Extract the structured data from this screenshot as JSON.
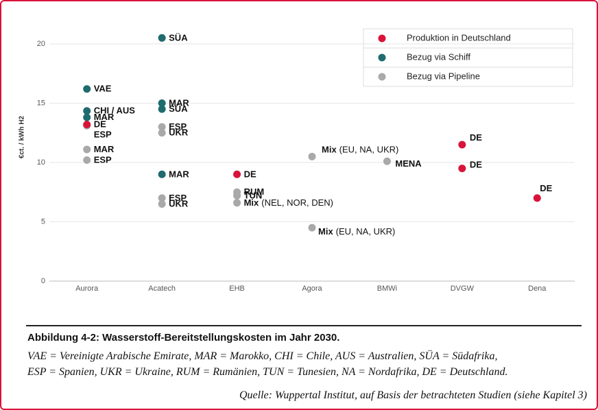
{
  "chart_data": {
    "type": "scatter",
    "y_label": "€ct. / kWh H2",
    "categories": [
      "Aurora",
      "Acatech",
      "EHB",
      "Agora",
      "BMWi",
      "DVGW",
      "Dena"
    ],
    "ylim": [
      0,
      21.5
    ],
    "yticks": [
      0,
      5,
      10,
      15,
      20
    ],
    "grid": true,
    "legend": "upper right",
    "series": [
      {
        "name": "Produktion in Deutschland",
        "color": "#d9143a",
        "points": [
          {
            "x": "Aurora",
            "value": 13.2,
            "label": "DE"
          },
          {
            "x": "EHB",
            "value": 9.0,
            "label": "DE"
          },
          {
            "x": "DVGW",
            "value": 11.5,
            "label": "DE"
          },
          {
            "x": "DVGW",
            "value": 9.5,
            "label": "DE"
          },
          {
            "x": "Dena",
            "value": 7.0,
            "label": "DE"
          }
        ]
      },
      {
        "name": "Bezug via Schiff",
        "color": "#1f6b6e",
        "points": [
          {
            "x": "Aurora",
            "value": 16.2,
            "label": "VAE"
          },
          {
            "x": "Aurora",
            "value": 14.35,
            "label": "CHI / AUS"
          },
          {
            "x": "Aurora",
            "value": 13.8,
            "label": "MAR"
          },
          {
            "x": "Acatech",
            "value": 20.5,
            "label": "SÜA"
          },
          {
            "x": "Acatech",
            "value": 15.0,
            "label": "MAR"
          },
          {
            "x": "Acatech",
            "value": 14.5,
            "label": "SÜA"
          },
          {
            "x": "Acatech",
            "value": 9.0,
            "label": "MAR"
          }
        ]
      },
      {
        "name": "Bezug via Pipeline",
        "color": "#a9a9a9",
        "points": [
          {
            "x": "Aurora",
            "value": 13.1,
            "label": "ESP"
          },
          {
            "x": "Aurora",
            "value": 11.1,
            "label": "MAR"
          },
          {
            "x": "Aurora",
            "value": 10.2,
            "label": "ESP"
          },
          {
            "x": "Acatech",
            "value": 13.0,
            "label": "ESP"
          },
          {
            "x": "Acatech",
            "value": 12.5,
            "label": "UKR"
          },
          {
            "x": "Acatech",
            "value": 7.0,
            "label": "ESP"
          },
          {
            "x": "Acatech",
            "value": 6.5,
            "label": "UKR"
          },
          {
            "x": "EHB",
            "value": 7.5,
            "label": "RUM"
          },
          {
            "x": "EHB",
            "value": 7.2,
            "label": "TUN"
          },
          {
            "x": "EHB",
            "value": 6.6,
            "label": "Mix",
            "detail": "(NEL, NOR, DEN)"
          },
          {
            "x": "Agora",
            "value": 10.5,
            "label": "Mix",
            "detail": "(EU, NA, UKR)"
          },
          {
            "x": "Agora",
            "value": 4.5,
            "label": "Mix",
            "detail": "(EU, NA, UKR)"
          },
          {
            "x": "BMWi",
            "value": 10.1,
            "label": "MENA"
          }
        ]
      }
    ]
  },
  "caption": {
    "title": "Abbildung 4-2: Wasserstoff-Bereitstellungskosten im Jahr 2030.",
    "line1": "VAE = Vereinigte Arabische Emirate, MAR = Marokko, CHI = Chile, AUS = Australien, SÜA = Südafrika,",
    "line2": "ESP = Spanien, UKR = Ukraine, RUM = Rumänien, TUN = Tunesien, NA = Nordafrika, DE = Deutschland.",
    "source": "Quelle: Wuppertal Institut, auf Basis der betrachteten Studien (siehe Kapitel 3)"
  }
}
